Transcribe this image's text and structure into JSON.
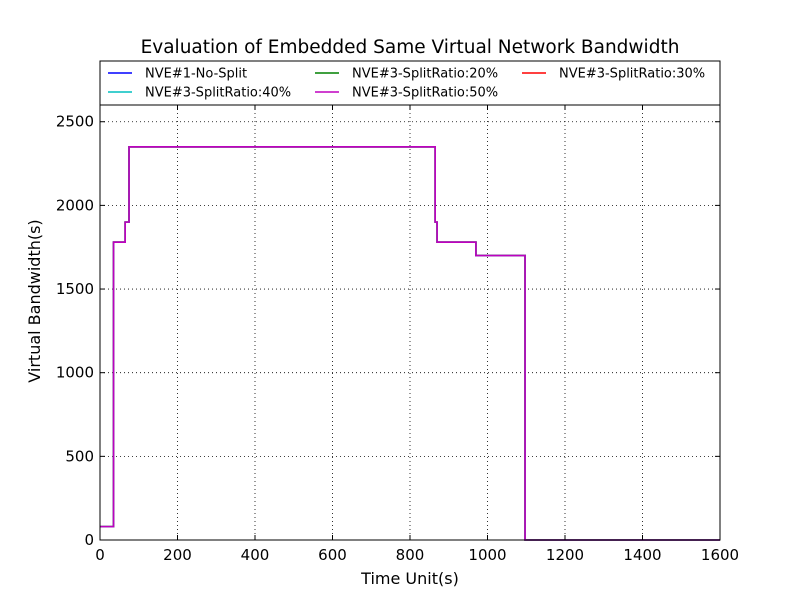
{
  "chart_data": {
    "type": "line",
    "title": "Evaluation of Embedded Same Virtual Network Bandwidth",
    "xlabel": "Time Unit(s)",
    "ylabel": "Virtual Bandwidth(s)",
    "xlim": [
      0,
      1600
    ],
    "ylim": [
      0,
      2600
    ],
    "xticks": [
      0,
      200,
      400,
      600,
      800,
      1000,
      1200,
      1400,
      1600
    ],
    "yticks": [
      0,
      500,
      1000,
      1500,
      2000,
      2500
    ],
    "grid": true,
    "line_style": "step",
    "legend_placement": "top",
    "legend_columns": 3,
    "series": [
      {
        "name": "NVE#1-No-Split",
        "color": "#0000ff",
        "x": [
          0,
          35,
          35,
          65,
          65,
          75,
          75,
          865,
          865,
          870,
          870,
          970,
          970,
          1097,
          1097,
          1600
        ],
        "y": [
          80,
          80,
          1780,
          1780,
          1900,
          1900,
          2350,
          2350,
          1900,
          1900,
          1780,
          1780,
          1700,
          1700,
          0,
          0
        ]
      },
      {
        "name": "NVE#3-SplitRatio:20%",
        "color": "#008000",
        "x": [
          0,
          35,
          35,
          65,
          65,
          75,
          75,
          865,
          865,
          870,
          870,
          970,
          970,
          1097,
          1097,
          1600
        ],
        "y": [
          80,
          80,
          1780,
          1780,
          1900,
          1900,
          2350,
          2350,
          1900,
          1900,
          1780,
          1780,
          1700,
          1700,
          0,
          0
        ]
      },
      {
        "name": "NVE#3-SplitRatio:30%",
        "color": "#ff0000",
        "x": [
          0,
          35,
          35,
          65,
          65,
          75,
          75,
          865,
          865,
          870,
          870,
          970,
          970,
          1097,
          1097,
          1600
        ],
        "y": [
          80,
          80,
          1780,
          1780,
          1900,
          1900,
          2350,
          2350,
          1900,
          1900,
          1780,
          1780,
          1700,
          1700,
          0,
          0
        ]
      },
      {
        "name": "NVE#3-SplitRatio:40%",
        "color": "#00bfbf",
        "x": [
          0,
          35,
          35,
          65,
          65,
          75,
          75,
          865,
          865,
          870,
          870,
          970,
          970,
          1097,
          1097,
          1600
        ],
        "y": [
          80,
          80,
          1780,
          1780,
          1900,
          1900,
          2350,
          2350,
          1900,
          1900,
          1780,
          1780,
          1700,
          1700,
          0,
          0
        ]
      },
      {
        "name": "NVE#3-SplitRatio:50%",
        "color": "#bf00bf",
        "x": [
          0,
          35,
          35,
          65,
          65,
          75,
          75,
          865,
          865,
          870,
          870,
          970,
          970,
          1097,
          1097,
          1600
        ],
        "y": [
          80,
          80,
          1780,
          1780,
          1900,
          1900,
          2350,
          2350,
          1900,
          1900,
          1780,
          1780,
          1700,
          1700,
          0,
          0
        ]
      }
    ]
  }
}
